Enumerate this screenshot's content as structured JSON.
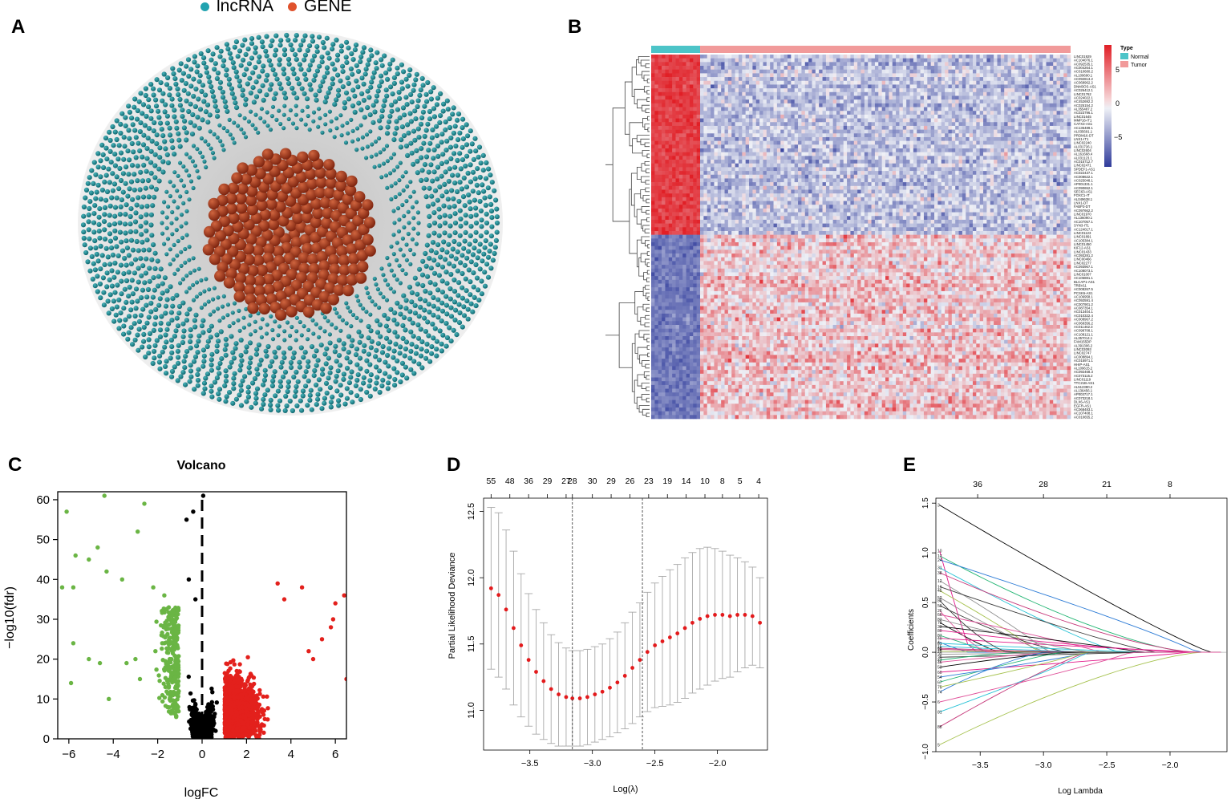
{
  "panels": {
    "a": "A",
    "b": "B",
    "c": "C",
    "d": "D",
    "e": "E"
  },
  "network": {
    "legend": [
      {
        "label": "lncRNA",
        "color": "#21a3b0"
      },
      {
        "label": "GENE",
        "color": "#e0522c"
      }
    ],
    "outer_node_color": "#1b8b94",
    "inner_node_color": "#a8391c"
  },
  "heatmap": {
    "legend_title": "Type",
    "legend": [
      {
        "label": "Normal",
        "color": "#4cc4c8"
      },
      {
        "label": "Tumor",
        "color": "#f19a9a"
      }
    ],
    "scale_ticks": [
      "5",
      "0",
      "−5"
    ],
    "colors": {
      "high": "#e11f26",
      "mid": "#eef0f6",
      "low": "#2f3b9b"
    },
    "genes": [
      "LINC01929",
      "AC104076.1",
      "AC092535.1",
      "AC004264.1",
      "AC010680.2",
      "AL109690.1",
      "AC092813.2",
      "AC068962.2",
      "DNM3OS-AS1",
      "AC026412.1",
      "LINC01762",
      "AC024022.1",
      "AC452692.2",
      "AC025154.2",
      "AL355487.2",
      "AC023796.1",
      "LINC01645",
      "MMP16-IT1",
      "CATX3-AS1",
      "AC136489.1",
      "AL035691.1",
      "PRDM16-DT",
      "LNX1-IT1",
      "LINC02240",
      "AL031726.1",
      "LINC02604",
      "AL161668.4",
      "AL031123.1",
      "AC015712.7",
      "LINC02471",
      "SPDEF1-AS1",
      "AC022437.1",
      "AC008622.1",
      "AC025048.1",
      "AP001331.1",
      "AC090652.1",
      "SEC63-AS1",
      "FOXC1-IT",
      "AL049638.1",
      "LNX1-DT",
      "FABP3-DT",
      "AC097662.2",
      "LINC01970",
      "AL136090.1",
      "AC107057.1",
      "SYN3-IT1",
      "AC124017.1",
      "LINC01123",
      "LINC01891",
      "AC105384.1",
      "LINC01450",
      "KIF12-AS1",
      "LINC01433",
      "AC093281.2",
      "LINC00466",
      "LINC02277",
      "AC093967.1",
      "AC108073.1",
      "LINC01007",
      "AC106881.1",
      "BLCAP1-AS1",
      "TRBV11",
      "AC008267.5",
      "PCSK6-AS1",
      "AC106958.1",
      "AC092591.4",
      "AC007901.2",
      "AC087354.1",
      "AC013404.1",
      "AC010322.4",
      "AC008967.2",
      "AC068356.2",
      "AC011462.3",
      "AC098708.1",
      "AC108121.1",
      "AL357014.1",
      "FAM155DP",
      "AL391306.2",
      "LINC03093",
      "LINC02747",
      "AC008894.1",
      "AC015971.1",
      "HHIP-AS1",
      "AL109615.2",
      "AC092468.3",
      "AC073115.2",
      "LINC01119",
      "TTC21B-AS1",
      "AL512380.2",
      "AL136456.1",
      "AP003717.1",
      "AC073218.1",
      "DLX6-AS1",
      "EGFR-AS1",
      "AC068483.1",
      "AC107408.1",
      "AC010655.2"
    ],
    "n_normal_frac": 0.12
  },
  "volcano": {
    "title": "Volcano",
    "xlabel": "logFC",
    "ylabel": "−log10(fdr)",
    "xticks": [
      "−6",
      "−4",
      "−2",
      "0",
      "2",
      "4",
      "6"
    ],
    "yticks": [
      "0",
      "10",
      "20",
      "30",
      "40",
      "50",
      "60"
    ],
    "colors": {
      "down": "#6ab544",
      "ns": "#000000",
      "up": "#e3201c"
    }
  },
  "chart_data": [
    {
      "type": "scatter",
      "title": "Volcano",
      "xlabel": "logFC",
      "ylabel": "−log10(fdr)",
      "xlim": [
        -6.5,
        6.5
      ],
      "ylim": [
        0,
        62
      ],
      "threshold_x": 0,
      "highlight_points": {
        "down": [
          [
            -6.1,
            57
          ],
          [
            -5.7,
            46
          ],
          [
            -4.4,
            61
          ],
          [
            -2.6,
            59
          ],
          [
            -2.9,
            52
          ],
          [
            -4.7,
            48
          ],
          [
            -5.1,
            45
          ],
          [
            -6.3,
            38
          ],
          [
            -5.8,
            24
          ],
          [
            -5.1,
            20
          ],
          [
            -4.6,
            19
          ],
          [
            -5.8,
            38
          ],
          [
            -4.3,
            42
          ],
          [
            -3.6,
            40
          ],
          [
            -2.2,
            38
          ],
          [
            -1.7,
            36
          ],
          [
            -1.5,
            33
          ],
          [
            -2.1,
            22
          ],
          [
            -3.4,
            19
          ],
          [
            -3.0,
            20
          ],
          [
            -4.2,
            10
          ],
          [
            -2.8,
            15
          ],
          [
            -5.9,
            14
          ]
        ],
        "ns": [
          [
            -0.4,
            57
          ],
          [
            -0.7,
            55
          ],
          [
            0.05,
            61
          ],
          [
            -0.6,
            40
          ],
          [
            -0.3,
            35
          ]
        ],
        "up": [
          [
            6.0,
            34
          ],
          [
            6.4,
            36
          ],
          [
            5.8,
            28
          ],
          [
            5.4,
            25
          ],
          [
            5.0,
            20
          ],
          [
            4.5,
            38
          ],
          [
            3.4,
            39
          ],
          [
            3.7,
            35
          ],
          [
            6.5,
            15
          ],
          [
            4.8,
            22
          ],
          [
            5.9,
            30
          ]
        ]
      }
    },
    {
      "type": "line",
      "title": "",
      "xlabel": "Log(λ)",
      "ylabel": "Partial Likelihood Deviance",
      "xlim": [
        -3.87,
        -1.6
      ],
      "ylim": [
        10.7,
        12.6
      ],
      "xticks": [
        -3.5,
        -3.0,
        -2.5,
        -2.0
      ],
      "yticks": [
        11.0,
        11.5,
        12.0,
        12.5
      ],
      "top_ticks": [
        "55",
        "48",
        "36",
        "29",
        "27",
        "28",
        "30",
        "29",
        "26",
        "23",
        "19",
        "14",
        "10",
        "8",
        "5",
        "4"
      ],
      "top_tick_x": [
        -3.81,
        -3.66,
        -3.51,
        -3.36,
        -3.21,
        -3.16,
        -3.0,
        -2.85,
        -2.7,
        -2.55,
        -2.4,
        -2.25,
        -2.1,
        -1.96,
        -1.82,
        -1.67
      ],
      "lambda_min": -3.16,
      "lambda_1se": -2.6,
      "x": [
        -3.81,
        -3.75,
        -3.69,
        -3.63,
        -3.57,
        -3.51,
        -3.45,
        -3.39,
        -3.33,
        -3.27,
        -3.21,
        -3.16,
        -3.1,
        -3.04,
        -2.98,
        -2.92,
        -2.86,
        -2.8,
        -2.74,
        -2.68,
        -2.62,
        -2.56,
        -2.5,
        -2.44,
        -2.38,
        -2.32,
        -2.26,
        -2.2,
        -2.14,
        -2.08,
        -2.02,
        -1.96,
        -1.9,
        -1.84,
        -1.78,
        -1.72,
        -1.66
      ],
      "y": [
        11.92,
        11.87,
        11.76,
        11.62,
        11.49,
        11.38,
        11.29,
        11.22,
        11.16,
        11.12,
        11.1,
        11.09,
        11.09,
        11.1,
        11.12,
        11.14,
        11.17,
        11.21,
        11.26,
        11.32,
        11.38,
        11.44,
        11.49,
        11.52,
        11.55,
        11.58,
        11.62,
        11.66,
        11.69,
        11.71,
        11.72,
        11.72,
        11.71,
        11.72,
        11.72,
        11.71,
        11.66
      ],
      "err": [
        0.61,
        0.62,
        0.6,
        0.58,
        0.54,
        0.5,
        0.47,
        0.44,
        0.41,
        0.39,
        0.37,
        0.36,
        0.36,
        0.36,
        0.36,
        0.36,
        0.37,
        0.38,
        0.4,
        0.42,
        0.43,
        0.45,
        0.47,
        0.49,
        0.51,
        0.52,
        0.53,
        0.53,
        0.53,
        0.52,
        0.5,
        0.48,
        0.46,
        0.43,
        0.4,
        0.37,
        0.34
      ]
    },
    {
      "type": "line",
      "title": "",
      "xlabel": "Log Lambda",
      "ylabel": "Coefficients",
      "xlim": [
        -3.85,
        -1.55
      ],
      "ylim": [
        -1.0,
        1.55
      ],
      "xticks": [
        -3.5,
        -3.0,
        -2.5,
        -2.0
      ],
      "yticks": [
        -1.0,
        -0.5,
        0.0,
        0.5,
        1.0,
        1.5
      ],
      "top_ticks": [
        "36",
        "28",
        "21",
        "8"
      ],
      "top_tick_x": [
        -3.52,
        -3.0,
        -2.5,
        -2.0
      ],
      "n_paths": 40
    }
  ]
}
